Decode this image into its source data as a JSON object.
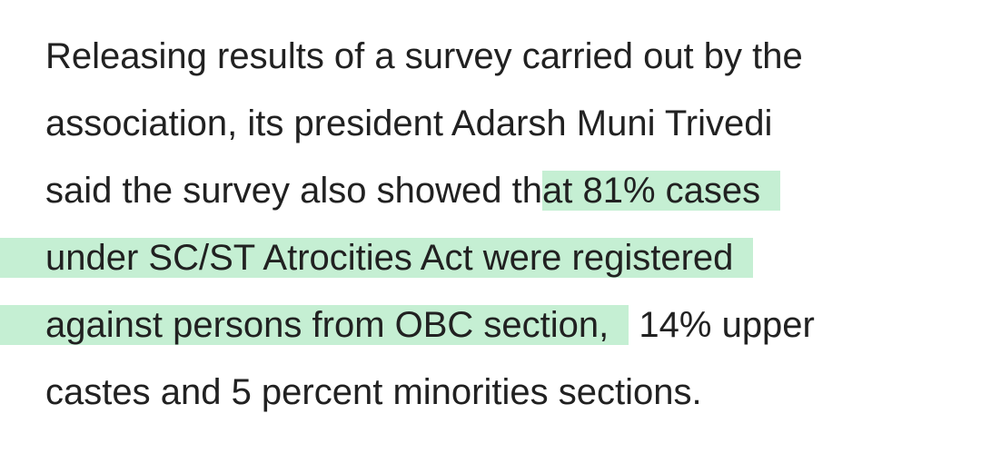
{
  "paragraph": {
    "lines": [
      {
        "segments": [
          {
            "text": "Releasing results of a survey carried out by the",
            "highlighted": false
          }
        ]
      },
      {
        "segments": [
          {
            "text": "association, its president Adarsh Muni Trivedi",
            "highlighted": false
          }
        ]
      },
      {
        "segments": [
          {
            "text": "said the survey also showed th",
            "highlighted": false
          },
          {
            "text": "at 81% cases",
            "highlighted": true
          }
        ]
      },
      {
        "segments": [
          {
            "text": "under SC/ST Atrocities Act were registered",
            "highlighted": true
          }
        ]
      },
      {
        "segments": [
          {
            "text": "against persons from OBC section,",
            "highlighted": true
          },
          {
            "text": " 14% upper",
            "highlighted": false
          }
        ]
      },
      {
        "segments": [
          {
            "text": "castes and 5 percent minorities sections.",
            "highlighted": false
          }
        ]
      }
    ]
  }
}
